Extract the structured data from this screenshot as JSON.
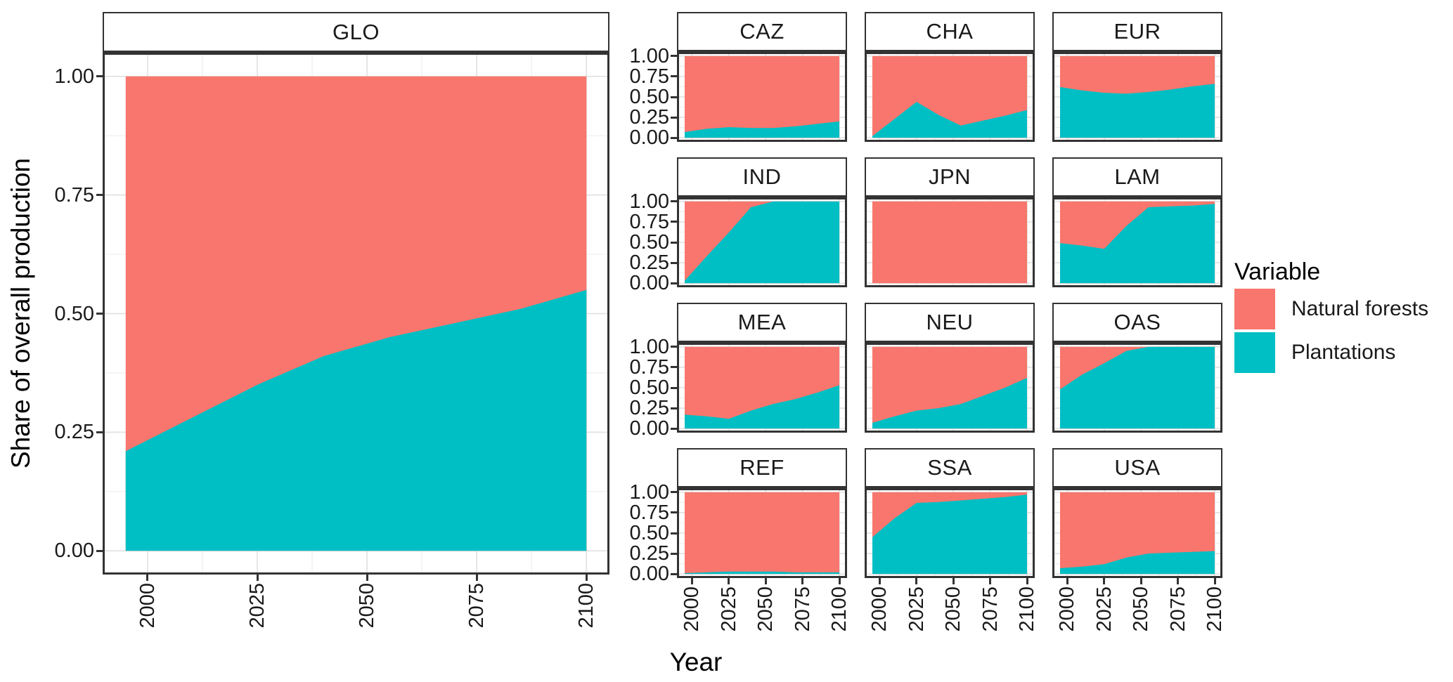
{
  "figure": {
    "y_axis_title": "Share of overall production",
    "x_axis_title": "Year",
    "legend": {
      "title": "Variable",
      "entries": [
        {
          "label": "Natural forests",
          "color": "#F8766D"
        },
        {
          "label": "Plantations",
          "color": "#00BFC4"
        }
      ]
    }
  },
  "chart_data": {
    "type": "area",
    "stacked": true,
    "facets": "one panel per region, shares stack to 1.0",
    "xlabel": "Year",
    "ylabel": "Share of overall production",
    "xlim": [
      1995,
      2100
    ],
    "ylim": [
      0,
      1
    ],
    "grid": "on",
    "legend_position": "right",
    "x": [
      1995,
      2010,
      2025,
      2040,
      2055,
      2070,
      2085,
      2100
    ],
    "x_tick_labels": [
      "2000",
      "2025",
      "2050",
      "2075",
      "2100"
    ],
    "x_tick_values": [
      2000,
      2025,
      2050,
      2075,
      2100
    ],
    "y_tick_labels": [
      "1.00",
      "0.75",
      "0.50",
      "0.25",
      "0.00"
    ],
    "y_tick_values": [
      1.0,
      0.75,
      0.5,
      0.25,
      0.0
    ],
    "series_names": [
      "Natural forests",
      "Plantations"
    ],
    "panels": [
      {
        "region": "GLO",
        "plantations_share": [
          0.21,
          0.28,
          0.35,
          0.41,
          0.45,
          0.48,
          0.51,
          0.55
        ],
        "natural_forests_share": [
          0.79,
          0.72,
          0.65,
          0.59,
          0.55,
          0.52,
          0.49,
          0.45
        ]
      },
      {
        "region": "CAZ",
        "plantations_share": [
          0.07,
          0.11,
          0.13,
          0.12,
          0.12,
          0.14,
          0.17,
          0.2
        ],
        "natural_forests_share": [
          0.93,
          0.89,
          0.87,
          0.88,
          0.88,
          0.86,
          0.83,
          0.8
        ]
      },
      {
        "region": "CHA",
        "plantations_share": [
          0.02,
          0.23,
          0.44,
          0.28,
          0.15,
          0.21,
          0.27,
          0.34
        ],
        "natural_forests_share": [
          0.98,
          0.77,
          0.56,
          0.72,
          0.85,
          0.79,
          0.73,
          0.66
        ]
      },
      {
        "region": "EUR",
        "plantations_share": [
          0.62,
          0.58,
          0.55,
          0.54,
          0.56,
          0.59,
          0.63,
          0.66
        ],
        "natural_forests_share": [
          0.38,
          0.42,
          0.45,
          0.46,
          0.44,
          0.41,
          0.37,
          0.34
        ]
      },
      {
        "region": "IND",
        "plantations_share": [
          0.03,
          0.33,
          0.62,
          0.93,
          1.0,
          1.0,
          1.0,
          1.0
        ],
        "natural_forests_share": [
          0.97,
          0.67,
          0.38,
          0.07,
          0.0,
          0.0,
          0.0,
          0.0
        ]
      },
      {
        "region": "JPN",
        "plantations_share": [
          0.0,
          0.0,
          0.0,
          0.0,
          0.0,
          0.0,
          0.0,
          0.0
        ],
        "natural_forests_share": [
          1.0,
          1.0,
          1.0,
          1.0,
          1.0,
          1.0,
          1.0,
          1.0
        ]
      },
      {
        "region": "LAM",
        "plantations_share": [
          0.49,
          0.46,
          0.42,
          0.7,
          0.93,
          0.94,
          0.95,
          0.97
        ],
        "natural_forests_share": [
          0.51,
          0.54,
          0.58,
          0.3,
          0.07,
          0.06,
          0.05,
          0.03
        ]
      },
      {
        "region": "MEA",
        "plantations_share": [
          0.17,
          0.15,
          0.12,
          0.22,
          0.3,
          0.36,
          0.44,
          0.53
        ],
        "natural_forests_share": [
          0.83,
          0.85,
          0.88,
          0.78,
          0.7,
          0.64,
          0.56,
          0.47
        ]
      },
      {
        "region": "NEU",
        "plantations_share": [
          0.07,
          0.15,
          0.22,
          0.25,
          0.3,
          0.4,
          0.5,
          0.62
        ],
        "natural_forests_share": [
          0.93,
          0.85,
          0.78,
          0.75,
          0.7,
          0.6,
          0.5,
          0.38
        ]
      },
      {
        "region": "OAS",
        "plantations_share": [
          0.48,
          0.66,
          0.8,
          0.95,
          1.0,
          1.0,
          1.0,
          1.0
        ],
        "natural_forests_share": [
          0.52,
          0.34,
          0.2,
          0.05,
          0.0,
          0.0,
          0.0,
          0.0
        ]
      },
      {
        "region": "REF",
        "plantations_share": [
          0.01,
          0.02,
          0.03,
          0.03,
          0.03,
          0.02,
          0.02,
          0.02
        ],
        "natural_forests_share": [
          0.99,
          0.98,
          0.97,
          0.97,
          0.97,
          0.98,
          0.98,
          0.98
        ]
      },
      {
        "region": "SSA",
        "plantations_share": [
          0.45,
          0.68,
          0.87,
          0.88,
          0.9,
          0.92,
          0.94,
          0.97
        ],
        "natural_forests_share": [
          0.55,
          0.32,
          0.13,
          0.12,
          0.1,
          0.08,
          0.06,
          0.03
        ]
      },
      {
        "region": "USA",
        "plantations_share": [
          0.07,
          0.09,
          0.12,
          0.2,
          0.25,
          0.26,
          0.27,
          0.28
        ],
        "natural_forests_share": [
          0.93,
          0.91,
          0.88,
          0.8,
          0.75,
          0.74,
          0.73,
          0.72
        ]
      }
    ]
  }
}
